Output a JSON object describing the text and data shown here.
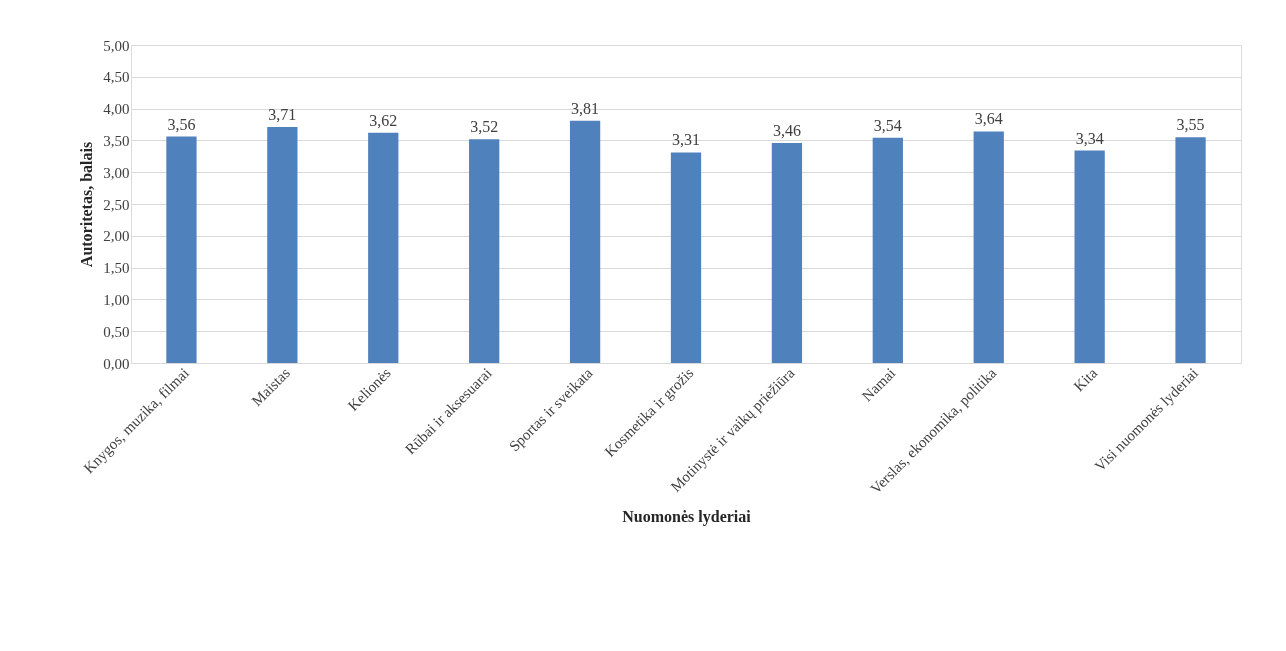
{
  "chart_data": {
    "type": "bar",
    "xlabel": "Nuomonės lyderiai",
    "ylabel": "Autoritetas, balais",
    "categories": [
      "Knygos, muzika, filmai",
      "Maistas",
      "Kelionės",
      "Rūbai ir aksesuarai",
      "Sportas ir sveikata",
      "Kosmetika ir grožis",
      "Motinystė ir vaikų priežiūra",
      "Namai",
      "Verslas, ekonomika, politika",
      "Kita",
      "Visi nuomonės lyderiai"
    ],
    "values": [
      3.56,
      3.71,
      3.62,
      3.52,
      3.81,
      3.31,
      3.46,
      3.54,
      3.64,
      3.34,
      3.55
    ],
    "value_labels": [
      "3,56",
      "3,71",
      "3,62",
      "3,52",
      "3,81",
      "3,31",
      "3,46",
      "3,54",
      "3,64",
      "3,34",
      "3,55"
    ],
    "color": "#4f81bd",
    "ylim": [
      0,
      5
    ],
    "yticks": [
      {
        "value": 0,
        "label": "0,00"
      },
      {
        "value": 0.5,
        "label": "0,50"
      },
      {
        "value": 1,
        "label": "1,00"
      },
      {
        "value": 1.5,
        "label": "1,50"
      },
      {
        "value": 2,
        "label": "2,00"
      },
      {
        "value": 2.5,
        "label": "2,50"
      },
      {
        "value": 3,
        "label": "3,00"
      },
      {
        "value": 3.5,
        "label": "3,50"
      },
      {
        "value": 4,
        "label": "4,00"
      },
      {
        "value": 4.5,
        "label": "4,50"
      },
      {
        "value": 5,
        "label": "5,00"
      }
    ],
    "grid": "y"
  }
}
